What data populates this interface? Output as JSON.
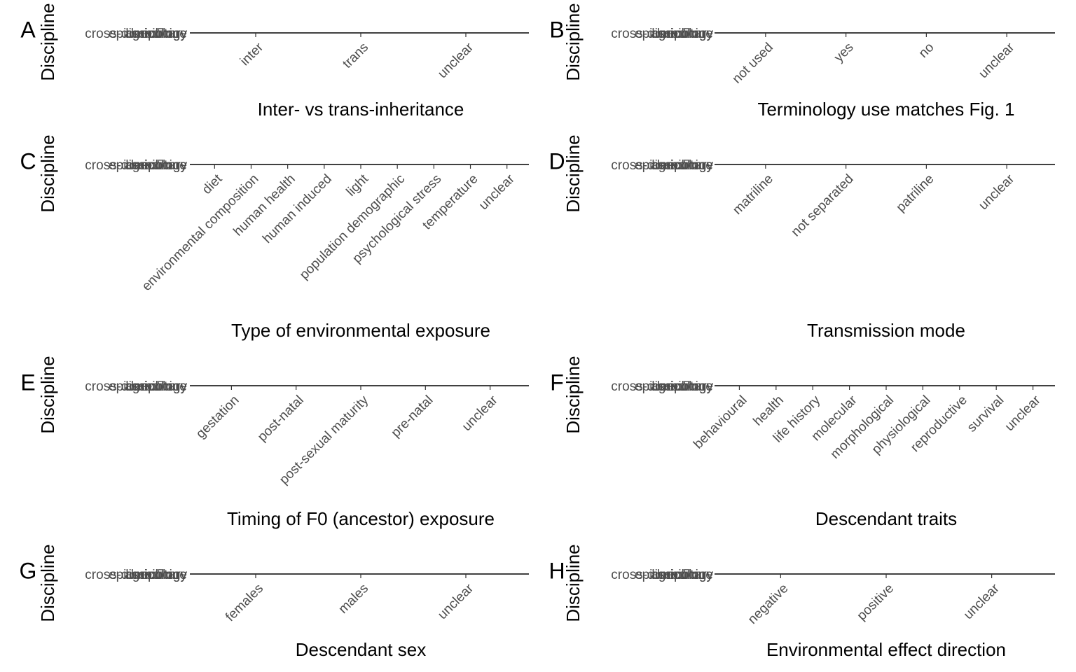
{
  "chart_data": [
    {
      "type": "tile",
      "tag": "A",
      "y_label": "Discipline",
      "x_label": "Inter- vs trans-inheritance",
      "y_categories": [
        "cross-disciplinary",
        "agriculture",
        "ecology",
        "epidemiology",
        "medicine"
      ],
      "categories": [
        "inter",
        "trans",
        "unclear"
      ]
    },
    {
      "type": "tile",
      "tag": "B",
      "y_label": "Discipline",
      "x_label": "Terminology use matches Fig. 1",
      "y_categories": [
        "cross-disciplinary",
        "agriculture",
        "ecology",
        "epidemiology",
        "medicine"
      ],
      "categories": [
        "not used",
        "yes",
        "no",
        "unclear"
      ]
    },
    {
      "type": "tile",
      "tag": "C",
      "y_label": "Discipline",
      "x_label": "Type of environmental exposure",
      "y_categories": [
        "cross-disciplinary",
        "agriculture",
        "ecology",
        "epidemiology",
        "medicine"
      ],
      "categories": [
        "diet",
        "environmental composition",
        "human health",
        "human induced",
        "light",
        "population demographic",
        "psychological stress",
        "temperature",
        "unclear"
      ]
    },
    {
      "type": "tile",
      "tag": "D",
      "y_label": "Discipline",
      "x_label": "Transmission mode",
      "y_categories": [
        "cross-disciplinary",
        "agriculture",
        "ecology",
        "epidemiology",
        "medicine"
      ],
      "categories": [
        "matriline",
        "not separated",
        "patriline",
        "unclear"
      ]
    },
    {
      "type": "tile",
      "tag": "E",
      "y_label": "Discipline",
      "x_label": "Timing of F0 (ancestor) exposure",
      "y_categories": [
        "cross-disciplinary",
        "agriculture",
        "ecology",
        "epidemiology",
        "medicine"
      ],
      "categories": [
        "gestation",
        "post-natal",
        "post-sexual maturity",
        "pre-natal",
        "unclear"
      ]
    },
    {
      "type": "tile",
      "tag": "F",
      "y_label": "Discipline",
      "x_label": "Descendant traits",
      "y_categories": [
        "cross-disciplinary",
        "agriculture",
        "ecology",
        "epidemiology",
        "medicine"
      ],
      "categories": [
        "behavioural",
        "health",
        "life history",
        "molecular",
        "morphological",
        "physiological",
        "reproductive",
        "survival",
        "unclear"
      ]
    },
    {
      "type": "tile",
      "tag": "G",
      "y_label": "Discipline",
      "x_label": "Descendant sex",
      "y_categories": [
        "cross-disciplinary",
        "agriculture",
        "ecology",
        "epidemiology",
        "medicine"
      ],
      "categories": [
        "females",
        "males",
        "unclear"
      ]
    },
    {
      "type": "tile",
      "tag": "H",
      "y_label": "Discipline",
      "x_label": "Environmental effect direction",
      "y_categories": [
        "cross-disciplinary",
        "agriculture",
        "ecology",
        "epidemiology",
        "medicine"
      ],
      "categories": [
        "negative",
        "positive",
        "unclear"
      ]
    }
  ]
}
